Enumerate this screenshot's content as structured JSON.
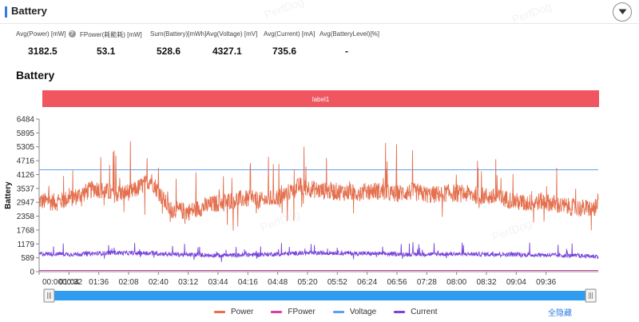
{
  "header": {
    "title": "Battery"
  },
  "stats": [
    {
      "label": "Avg(Power) [mW]",
      "value": "3182.5",
      "help": true
    },
    {
      "label": "FPower(耗能耗) [mW]",
      "value": "53.1"
    },
    {
      "label": "Sum(Battery)[mWh]",
      "value": "528.6"
    },
    {
      "label": "Avg(Voltage) [mV]",
      "value": "4327.1"
    },
    {
      "label": "Avg(Current) [mA]",
      "value": "735.6"
    },
    {
      "label": "Avg(BatteryLevel)[%]",
      "value": "-"
    }
  ],
  "section_title": "Battery",
  "watermark": "PerfDog",
  "legend_controls": {
    "hide_all": "全隐藏"
  },
  "colors": {
    "power": "#e4704f",
    "fpower": "#d63ea8",
    "voltage": "#5b9ef5",
    "current": "#7744d9",
    "label_band": "#ef5660",
    "slider": "#2f9cf0",
    "accent": "#2f7de1"
  },
  "chart_data": {
    "type": "line",
    "ylabel": "Battery",
    "y_ticks": [
      0,
      589,
      1179,
      1768,
      2358,
      2947,
      3537,
      4126,
      4716,
      5305,
      5895,
      6484
    ],
    "ylim": [
      0,
      6484
    ],
    "x_ticks": [
      "00:0000:32",
      "01:04",
      "01:36",
      "02:08",
      "02:40",
      "03:12",
      "03:44",
      "04:16",
      "04:48",
      "05:20",
      "05:52",
      "06:24",
      "06:56",
      "07:28",
      "08:00",
      "08:32",
      "09:04",
      "09:36"
    ],
    "xlim_seconds": [
      0,
      600
    ],
    "label_band": "label1",
    "grid": false,
    "legend_position": "bottom",
    "series": [
      {
        "name": "Power",
        "x_seconds": [
          0,
          20,
          40,
          60,
          80,
          100,
          110,
          120,
          140,
          160,
          180,
          200,
          220,
          240,
          260,
          280,
          300,
          320,
          340,
          360,
          380,
          400,
          420,
          440,
          460,
          480,
          500,
          520,
          540,
          560,
          580,
          600
        ],
        "values": [
          3000,
          2950,
          3200,
          3550,
          3300,
          3400,
          3650,
          3900,
          2650,
          2550,
          2800,
          3000,
          3100,
          3000,
          3200,
          3650,
          3450,
          3400,
          3350,
          3450,
          3300,
          3400,
          3250,
          3350,
          3300,
          3200,
          3100,
          2900,
          3000,
          2800,
          2700,
          2700
        ]
      },
      {
        "name": "FPower",
        "x_seconds": [
          0,
          600
        ],
        "values": [
          53,
          53
        ]
      },
      {
        "name": "Voltage",
        "x_seconds": [
          0,
          600
        ],
        "values": [
          4327,
          4327
        ]
      },
      {
        "name": "Current",
        "x_seconds": [
          0,
          40,
          80,
          120,
          160,
          200,
          240,
          280,
          320,
          360,
          400,
          440,
          480,
          520,
          560,
          600
        ],
        "values": [
          760,
          740,
          800,
          780,
          720,
          690,
          730,
          780,
          800,
          760,
          740,
          750,
          740,
          720,
          690,
          650
        ]
      }
    ]
  }
}
